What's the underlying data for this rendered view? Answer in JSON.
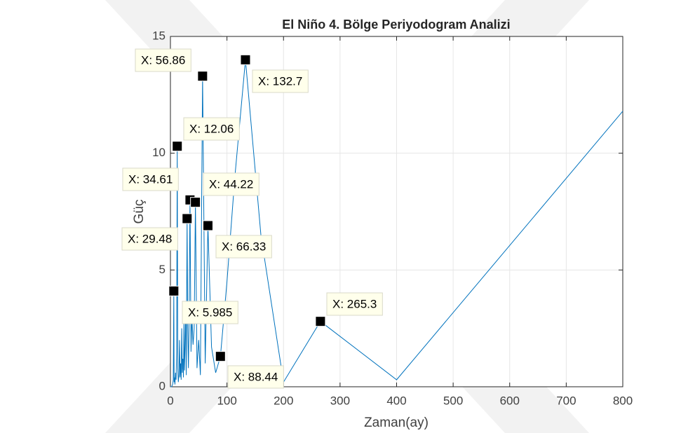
{
  "chart_data": {
    "type": "line",
    "title": "El Niño 4. Bölge Periyodogram Analizi",
    "xlabel": "Zaman(ay)",
    "ylabel": "Güç",
    "xlim": [
      0,
      800
    ],
    "ylim": [
      0,
      15
    ],
    "xticks": [
      0,
      100,
      200,
      300,
      400,
      500,
      600,
      700,
      800
    ],
    "yticks": [
      0,
      5,
      10,
      15
    ],
    "grid": true,
    "series": [
      {
        "color": "#0072bd",
        "x": [
          0,
          2,
          3,
          4,
          5,
          5.985,
          6.5,
          7,
          8,
          9,
          10,
          11,
          12.06,
          13,
          14,
          15,
          16,
          17,
          18,
          19,
          20,
          21,
          22,
          23,
          24,
          25,
          26,
          27,
          28,
          29.48,
          30.6,
          31.8,
          33,
          34.61,
          36.4,
          38,
          40,
          42,
          44.22,
          47,
          50,
          53,
          56.86,
          61.5,
          66.33,
          72.7,
          80,
          88.44,
          100,
          114,
          132.7,
          160,
          200,
          265.3,
          400,
          800
        ],
        "values": [
          0,
          0,
          0.05,
          0.1,
          0.3,
          4.1,
          0.2,
          0.4,
          0.1,
          0.6,
          0.3,
          1.5,
          10.3,
          0.8,
          0.2,
          0.5,
          2,
          0.4,
          1,
          0.3,
          2.5,
          0.6,
          1.2,
          0.4,
          2.8,
          0.7,
          1.8,
          3.5,
          0.5,
          7.2,
          2.5,
          0.8,
          2.7,
          8.0,
          1.5,
          3,
          1.8,
          2.5,
          7.9,
          0.8,
          2,
          0.5,
          13.3,
          1,
          6.9,
          1.7,
          0.6,
          1.3,
          4.5,
          9,
          14,
          6.5,
          0.2,
          2.8,
          0.3,
          11.8
        ]
      }
    ],
    "datatips": [
      {
        "x": 56.86,
        "y": 13.3,
        "label": "X: 56.86"
      },
      {
        "x": 132.7,
        "y": 14,
        "label": "X: 132.7"
      },
      {
        "x": 12.06,
        "y": 10.3,
        "label": "X: 12.06"
      },
      {
        "x": 34.61,
        "y": 8.0,
        "label": "X: 34.61"
      },
      {
        "x": 44.22,
        "y": 7.9,
        "label": "X: 44.22"
      },
      {
        "x": 29.48,
        "y": 7.2,
        "label": "X: 29.48"
      },
      {
        "x": 66.33,
        "y": 6.9,
        "label": "X: 66.33"
      },
      {
        "x": 5.985,
        "y": 4.1,
        "label": "X: 5.985"
      },
      {
        "x": 88.44,
        "y": 1.3,
        "label": "X: 88.44"
      },
      {
        "x": 265.3,
        "y": 2.8,
        "label": "X: 265.3"
      }
    ]
  }
}
